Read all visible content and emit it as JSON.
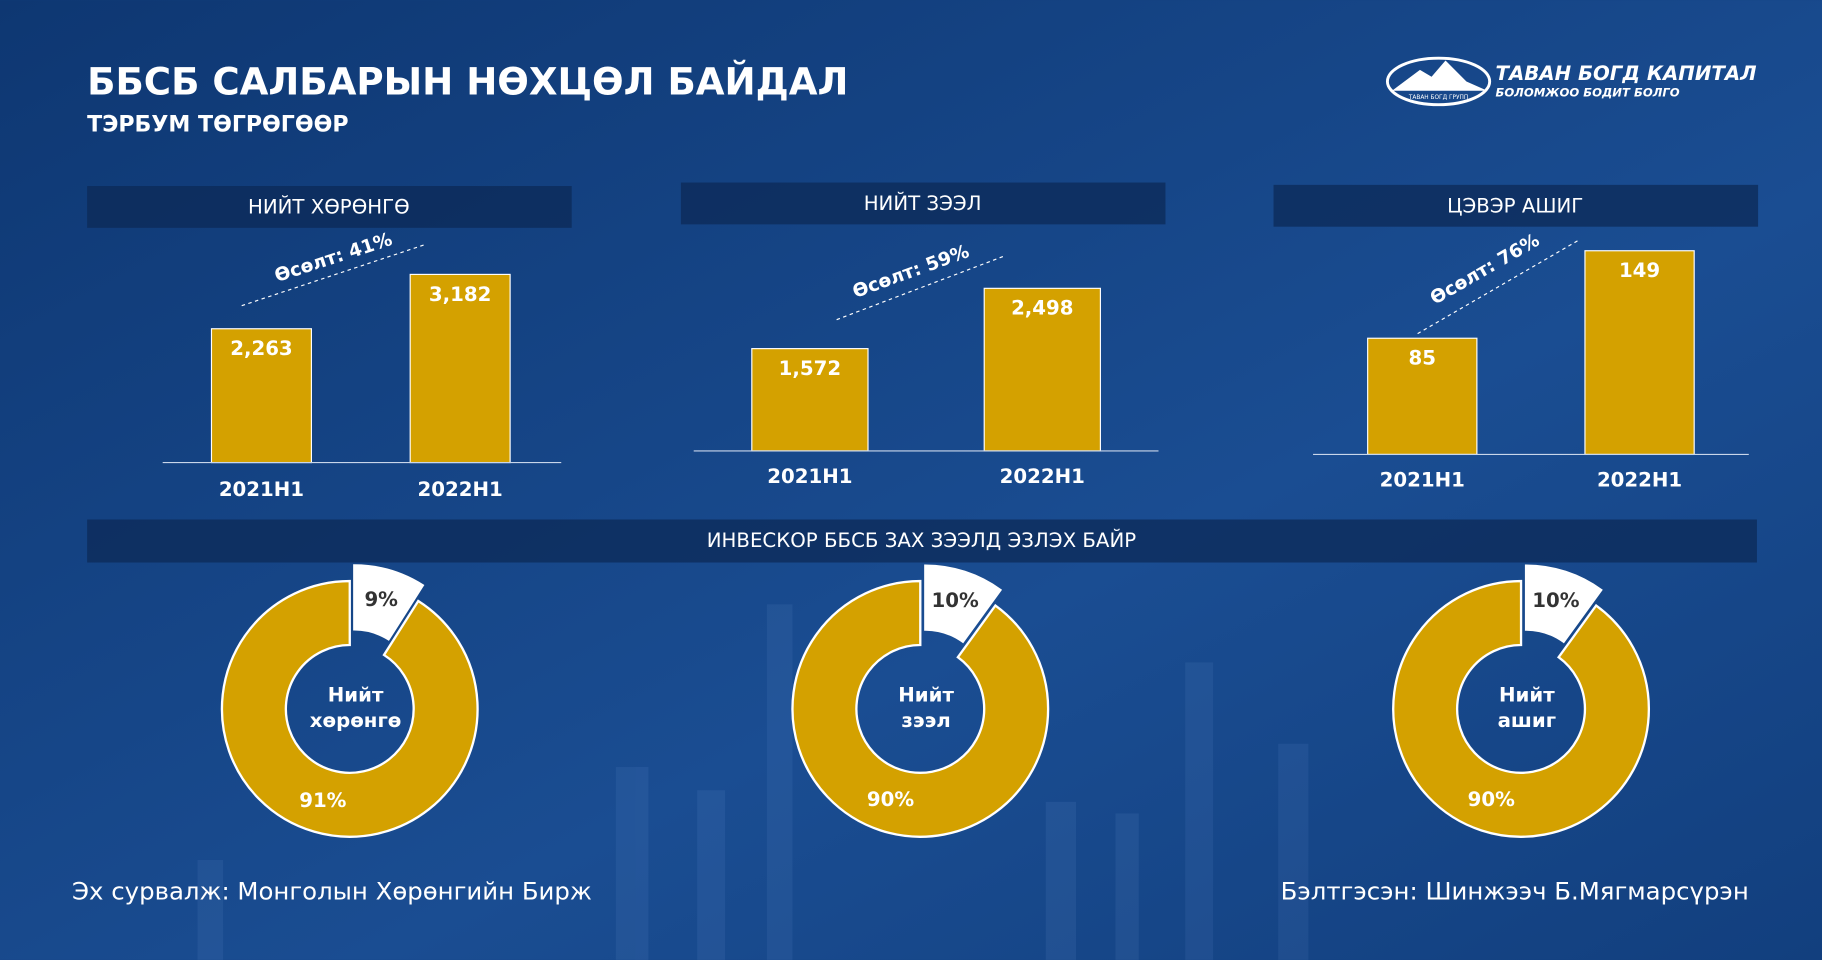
{
  "title": "ББСБ САЛБАРЫН НӨХЦӨЛ БАЙДАЛ",
  "subtitle": "ТЭРБУМ ТӨГРӨГӨӨР",
  "logo": {
    "name": "ТАВАН БОГД КАПИТАЛ",
    "slogan": "БОЛОМЖОО БОДИТ БОЛГО",
    "group": "ТАВАН БОГД ГРУПП"
  },
  "section_title": "ИНВЕСКОР ББСБ ЗАХ ЗЭЭЛД ЭЗЛЭХ БАЙР",
  "source": "Эх сурвалж: Монголын Хөрөнгийн Бирж",
  "author": "Бэлтгэсэн: Шинжээч Б.Мягмарсүрэн",
  "chart_data": [
    {
      "type": "bar",
      "title": "НИЙТ ХӨРӨНГӨ",
      "categories": [
        "2021H1",
        "2022H1"
      ],
      "values": [
        2263,
        3182
      ],
      "value_labels": [
        "2,263",
        "3,182"
      ],
      "annotation": "Өсөлт: 41%",
      "color": "#d4a100",
      "ylim": [
        0,
        3930
      ]
    },
    {
      "type": "bar",
      "title": "НИЙТ ЗЭЭЛ",
      "categories": [
        "2021H1",
        "2022H1"
      ],
      "values": [
        1572,
        2498
      ],
      "value_labels": [
        "1,572",
        "2,498"
      ],
      "annotation": "Өсөлт: 59%",
      "color": "#d4a100",
      "ylim": [
        0,
        3570
      ]
    },
    {
      "type": "bar",
      "title": "ЦЭВЭР АШИГ",
      "categories": [
        "2021H1",
        "2022H1"
      ],
      "values": [
        85,
        149
      ],
      "annotation": "Өсөлт: 76%",
      "color": "#d4a100",
      "ylim": [
        0,
        170
      ]
    },
    {
      "type": "donut",
      "center_label": [
        "Нийт",
        "хөрөнгө"
      ],
      "values": [
        9,
        91
      ],
      "value_labels": [
        "9%",
        "91%"
      ],
      "colors": [
        "#ffffff",
        "#d4a100"
      ]
    },
    {
      "type": "donut",
      "center_label": [
        "Нийт",
        "зээл"
      ],
      "values": [
        10,
        90
      ],
      "value_labels": [
        "10%",
        "90%"
      ],
      "colors": [
        "#ffffff",
        "#d4a100"
      ]
    },
    {
      "type": "donut",
      "center_label": [
        "Нийт",
        "ашиг"
      ],
      "values": [
        10,
        90
      ],
      "value_labels": [
        "10%",
        "90%"
      ],
      "colors": [
        "#ffffff",
        "#d4a100"
      ]
    }
  ]
}
